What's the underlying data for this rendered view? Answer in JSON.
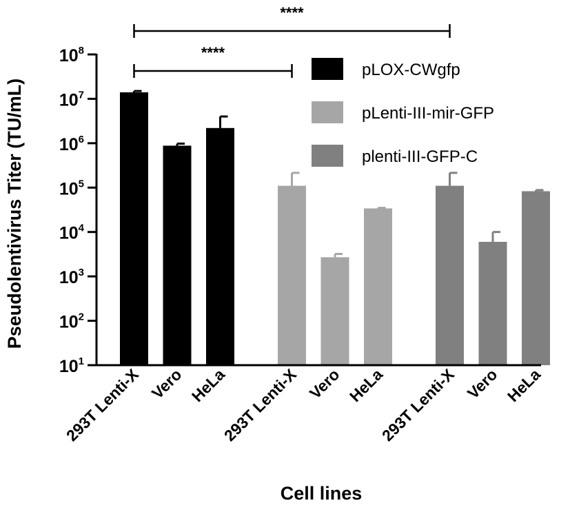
{
  "chart_data": {
    "type": "bar",
    "y_scale": "log10",
    "ylim": [
      10,
      100000000
    ],
    "y_ticks": [
      {
        "base": "10",
        "exp": "1"
      },
      {
        "base": "10",
        "exp": "2"
      },
      {
        "base": "10",
        "exp": "3"
      },
      {
        "base": "10",
        "exp": "4"
      },
      {
        "base": "10",
        "exp": "5"
      },
      {
        "base": "10",
        "exp": "6"
      },
      {
        "base": "10",
        "exp": "7"
      },
      {
        "base": "10",
        "exp": "8"
      }
    ],
    "xlabel": "Cell lines",
    "ylabel": "Pseudolentivirus Titer (TU/mL)",
    "categories": [
      "293T Lenti-X",
      "Vero",
      "HeLa"
    ],
    "series": [
      {
        "name": "pLOX-CWgfp",
        "color": "#000000",
        "values": [
          14000000,
          880000,
          2200000
        ],
        "error_upper": [
          15000000,
          980000,
          4000000
        ]
      },
      {
        "name": "pLenti-III-mir-GFP",
        "color": "#a6a6a6",
        "values": [
          110000,
          2700,
          34000
        ],
        "error_upper": [
          215000,
          3200,
          35000
        ]
      },
      {
        "name": "plenti-III-GFP-C",
        "color": "#808080",
        "values": [
          110000,
          6000,
          83000
        ],
        "error_upper": [
          215000,
          10000,
          88000
        ]
      }
    ],
    "legend": {
      "position": "top-right"
    },
    "significance": [
      {
        "label": "****",
        "from": [
          0,
          0
        ],
        "to": [
          2,
          0
        ]
      },
      {
        "label": "****",
        "from": [
          0,
          0
        ],
        "to": [
          1,
          0
        ]
      }
    ],
    "grid": false
  }
}
